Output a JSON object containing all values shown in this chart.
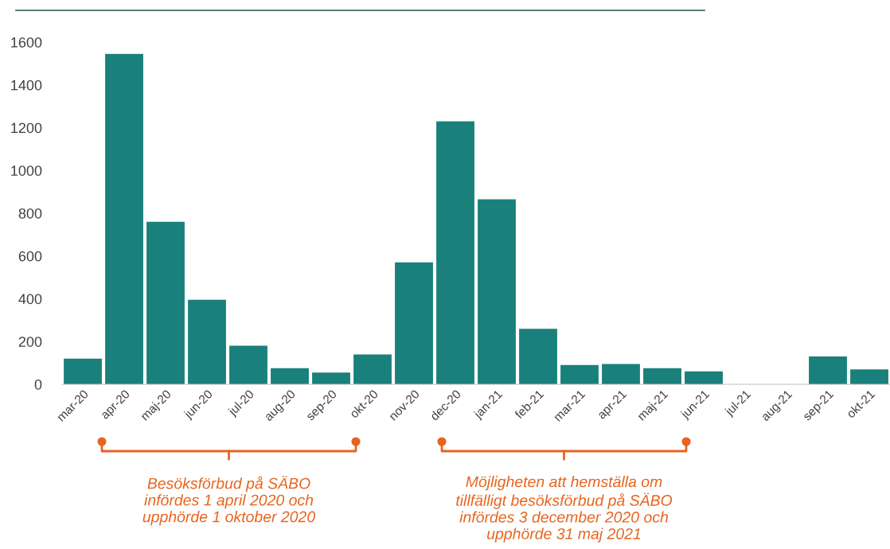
{
  "chart_data": {
    "type": "bar",
    "categories": [
      "mar-20",
      "apr-20",
      "maj-20",
      "jun-20",
      "jul-20",
      "aug-20",
      "sep-20",
      "okt-20",
      "nov-20",
      "dec-20",
      "jan-21",
      "feb-21",
      "mar-21",
      "apr-21",
      "maj-21",
      "jun-21",
      "jul-21",
      "aug-21",
      "sep-21",
      "okt-21"
    ],
    "values": [
      120,
      1545,
      760,
      395,
      180,
      75,
      55,
      140,
      570,
      1230,
      865,
      260,
      90,
      95,
      75,
      60,
      0,
      0,
      130,
      70
    ],
    "color": "#1a807c",
    "ylim": [
      0,
      1600
    ],
    "yticks": [
      0,
      200,
      400,
      600,
      800,
      1000,
      1200,
      1400,
      1600
    ],
    "grid": false,
    "annotations": [
      "Besöksförbud på SÄBO\ninfördes 1 april 2020 och\nupphörde 1 oktober 2020",
      "Möjligheten att hemställa om\ntillfälligt besöksförbud på SÄBO\ninfördes 3 december 2020 och\nupphörde 31 maj 2021"
    ]
  }
}
